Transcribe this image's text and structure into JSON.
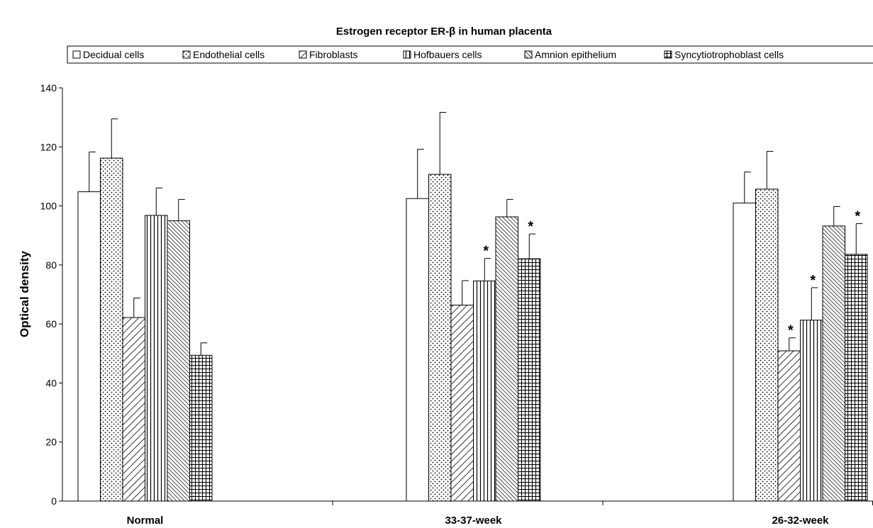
{
  "chart_data": {
    "type": "bar",
    "title": "Estrogen receptor ER-β in human placenta",
    "xlabel": "",
    "ylabel": "Optical density",
    "ylim": [
      0,
      140
    ],
    "yticks": [
      0,
      20,
      40,
      60,
      80,
      100,
      120,
      140
    ],
    "categories": [
      "Normal",
      "33-37-week",
      "26-32-week"
    ],
    "legend_position": "top",
    "grid": false,
    "series": [
      {
        "name": "Decidual cells",
        "pattern": "empty",
        "values": [
          104.8,
          102.5,
          101.0
        ],
        "errors": [
          13.5,
          16.7,
          10.5
        ],
        "significant": [
          false,
          false,
          false
        ]
      },
      {
        "name": "Endothelial cells",
        "pattern": "dots",
        "values": [
          116.2,
          110.7,
          105.7
        ],
        "errors": [
          13.3,
          21.0,
          12.8
        ],
        "significant": [
          false,
          false,
          false
        ]
      },
      {
        "name": "Fibroblasts",
        "pattern": "diag-wide",
        "values": [
          62.2,
          66.4,
          50.9
        ],
        "errors": [
          6.6,
          8.3,
          4.4
        ],
        "significant": [
          false,
          false,
          true
        ]
      },
      {
        "name": "Hofbauers cells",
        "pattern": "vlines",
        "values": [
          96.8,
          74.6,
          61.3
        ],
        "errors": [
          9.3,
          7.6,
          11.0
        ],
        "significant": [
          false,
          true,
          true
        ]
      },
      {
        "name": "Amnion epithelium",
        "pattern": "diag-dense",
        "values": [
          95.0,
          96.3,
          93.2
        ],
        "errors": [
          7.2,
          5.9,
          6.6
        ],
        "significant": [
          false,
          false,
          false
        ]
      },
      {
        "name": "Syncytiotrophoblast cells",
        "pattern": "grid",
        "values": [
          49.4,
          82.1,
          83.6
        ],
        "errors": [
          4.2,
          8.4,
          10.4
        ],
        "significant": [
          false,
          true,
          true
        ]
      }
    ],
    "significance_marker": "*"
  }
}
